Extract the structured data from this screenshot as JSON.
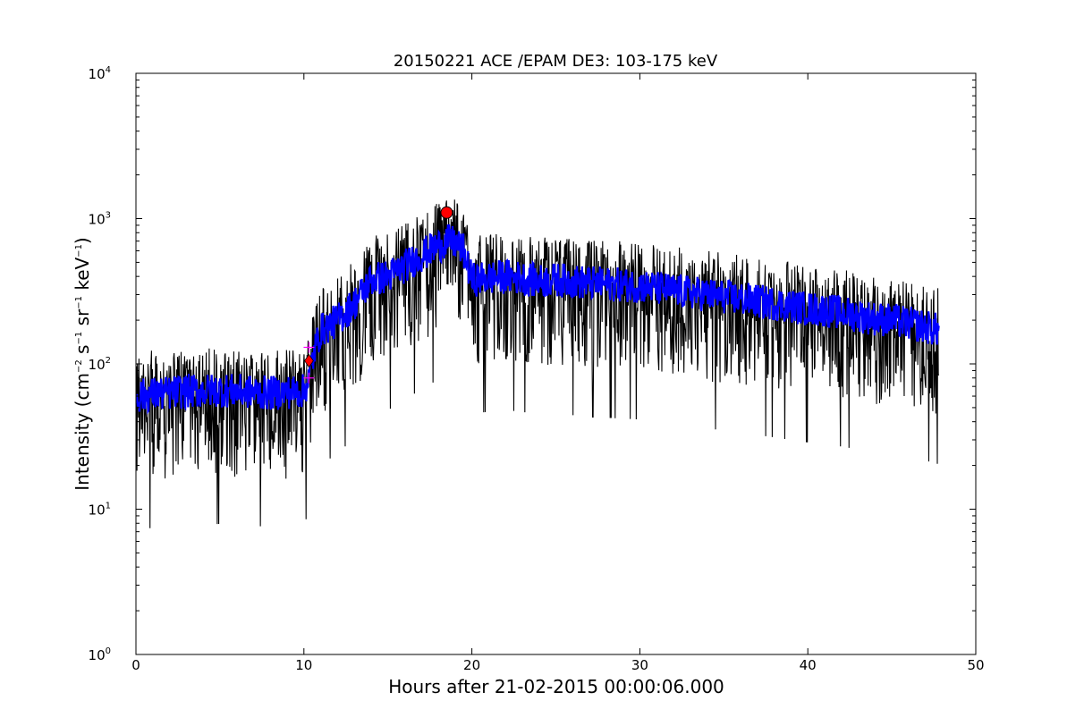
{
  "chart_data": {
    "type": "line",
    "title": "20150221 ACE /EPAM DE3: 103-175 keV",
    "xlabel": "Hours after 21-02-2015 00:00:06.000",
    "ylabel": {
      "prefix": "Intensity (cm",
      "e1": "−2",
      "s": " s",
      "e2": "−1",
      "sr": " sr",
      "e3": "−1",
      "kev": " keV",
      "e4": "−1",
      "suffix": ")"
    },
    "xlim": [
      0,
      50
    ],
    "ylim": [
      1,
      10000
    ],
    "yscale": "log",
    "grid": false,
    "x_ticks": [
      "0",
      "10",
      "20",
      "30",
      "40",
      "50"
    ],
    "y_ticks": [
      {
        "base": "10",
        "exp": "0"
      },
      {
        "base": "10",
        "exp": "1"
      },
      {
        "base": "10",
        "exp": "2"
      },
      {
        "base": "10",
        "exp": "3"
      },
      {
        "base": "10",
        "exp": "4"
      }
    ],
    "series": [
      {
        "role": "raw",
        "color": "#000000",
        "x": [
          0,
          1,
          2,
          3,
          4,
          5,
          6,
          7,
          8,
          9,
          10,
          10.3,
          10.6,
          11,
          12,
          13,
          14,
          15,
          16,
          17,
          18,
          18.5,
          19,
          19.5,
          20,
          21,
          22,
          23,
          24,
          25,
          26,
          27,
          28,
          29,
          30,
          31,
          32,
          33,
          34,
          35,
          36,
          37,
          38,
          39,
          40,
          41,
          42,
          43,
          44,
          45,
          46,
          47,
          47.8
        ],
        "y": [
          60,
          62,
          63,
          65,
          65,
          66,
          65,
          64,
          63,
          64,
          65,
          80,
          120,
          170,
          200,
          260,
          380,
          400,
          470,
          560,
          650,
          700,
          680,
          600,
          380,
          390,
          400,
          390,
          370,
          380,
          370,
          360,
          355,
          350,
          345,
          330,
          320,
          310,
          300,
          290,
          280,
          270,
          260,
          250,
          240,
          235,
          225,
          215,
          205,
          200,
          190,
          180,
          170
        ],
        "noise_min_factor": 0.12,
        "noise_max_factor": 2.0
      },
      {
        "role": "smoothed",
        "color": "#0000ff",
        "x": [
          0,
          1,
          2,
          3,
          4,
          5,
          6,
          7,
          8,
          9,
          10,
          10.3,
          10.6,
          11,
          12,
          13,
          14,
          15,
          16,
          17,
          18,
          18.5,
          19,
          19.5,
          20,
          21,
          22,
          23,
          24,
          25,
          26,
          27,
          28,
          29,
          30,
          31,
          32,
          33,
          34,
          35,
          36,
          37,
          38,
          39,
          40,
          41,
          42,
          43,
          44,
          45,
          46,
          47,
          47.8
        ],
        "y": [
          60,
          62,
          63,
          65,
          65,
          66,
          65,
          64,
          63,
          64,
          65,
          80,
          120,
          170,
          200,
          260,
          380,
          400,
          470,
          560,
          650,
          700,
          680,
          600,
          380,
          390,
          400,
          390,
          370,
          380,
          370,
          360,
          355,
          350,
          345,
          330,
          320,
          310,
          300,
          290,
          280,
          270,
          260,
          250,
          240,
          235,
          225,
          215,
          205,
          200,
          190,
          180,
          170
        ]
      }
    ],
    "markers": [
      {
        "kind": "peak",
        "shape": "circle",
        "color": "#ff0000",
        "x": 18.5,
        "y": 1100
      },
      {
        "kind": "onset",
        "shape": "diamond",
        "color": "#ff0000",
        "x": 10.3,
        "y": 105
      },
      {
        "kind": "onset-error",
        "shape": "cross",
        "color": "#ff00ff",
        "x": 10.3,
        "y_low": 80,
        "y_high": 130
      }
    ]
  }
}
